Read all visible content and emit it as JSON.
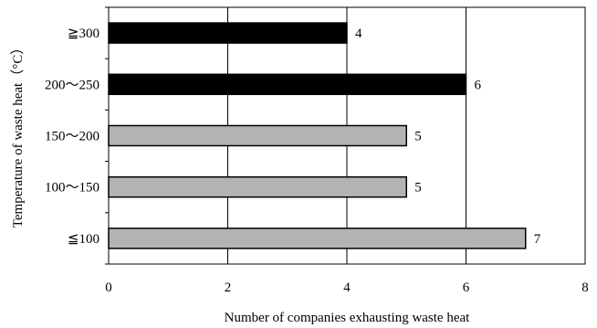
{
  "chart_data": {
    "type": "bar",
    "orientation": "horizontal",
    "categories": [
      "≧300",
      "200～250",
      "150～200",
      "100～150",
      "≦100"
    ],
    "values": [
      4,
      6,
      5,
      5,
      7
    ],
    "bar_colors": [
      "#000000",
      "#000000",
      "#b3b3b3",
      "#b3b3b3",
      "#b3b3b3"
    ],
    "xlabel": "Number of companies exhausting waste heat",
    "ylabel": "Temperature of waste heat（°C）",
    "xlim": [
      0,
      8
    ],
    "xticks": [
      0,
      2,
      4,
      6,
      8
    ],
    "grid": "vertical",
    "data_labels": true,
    "legend": "none"
  }
}
